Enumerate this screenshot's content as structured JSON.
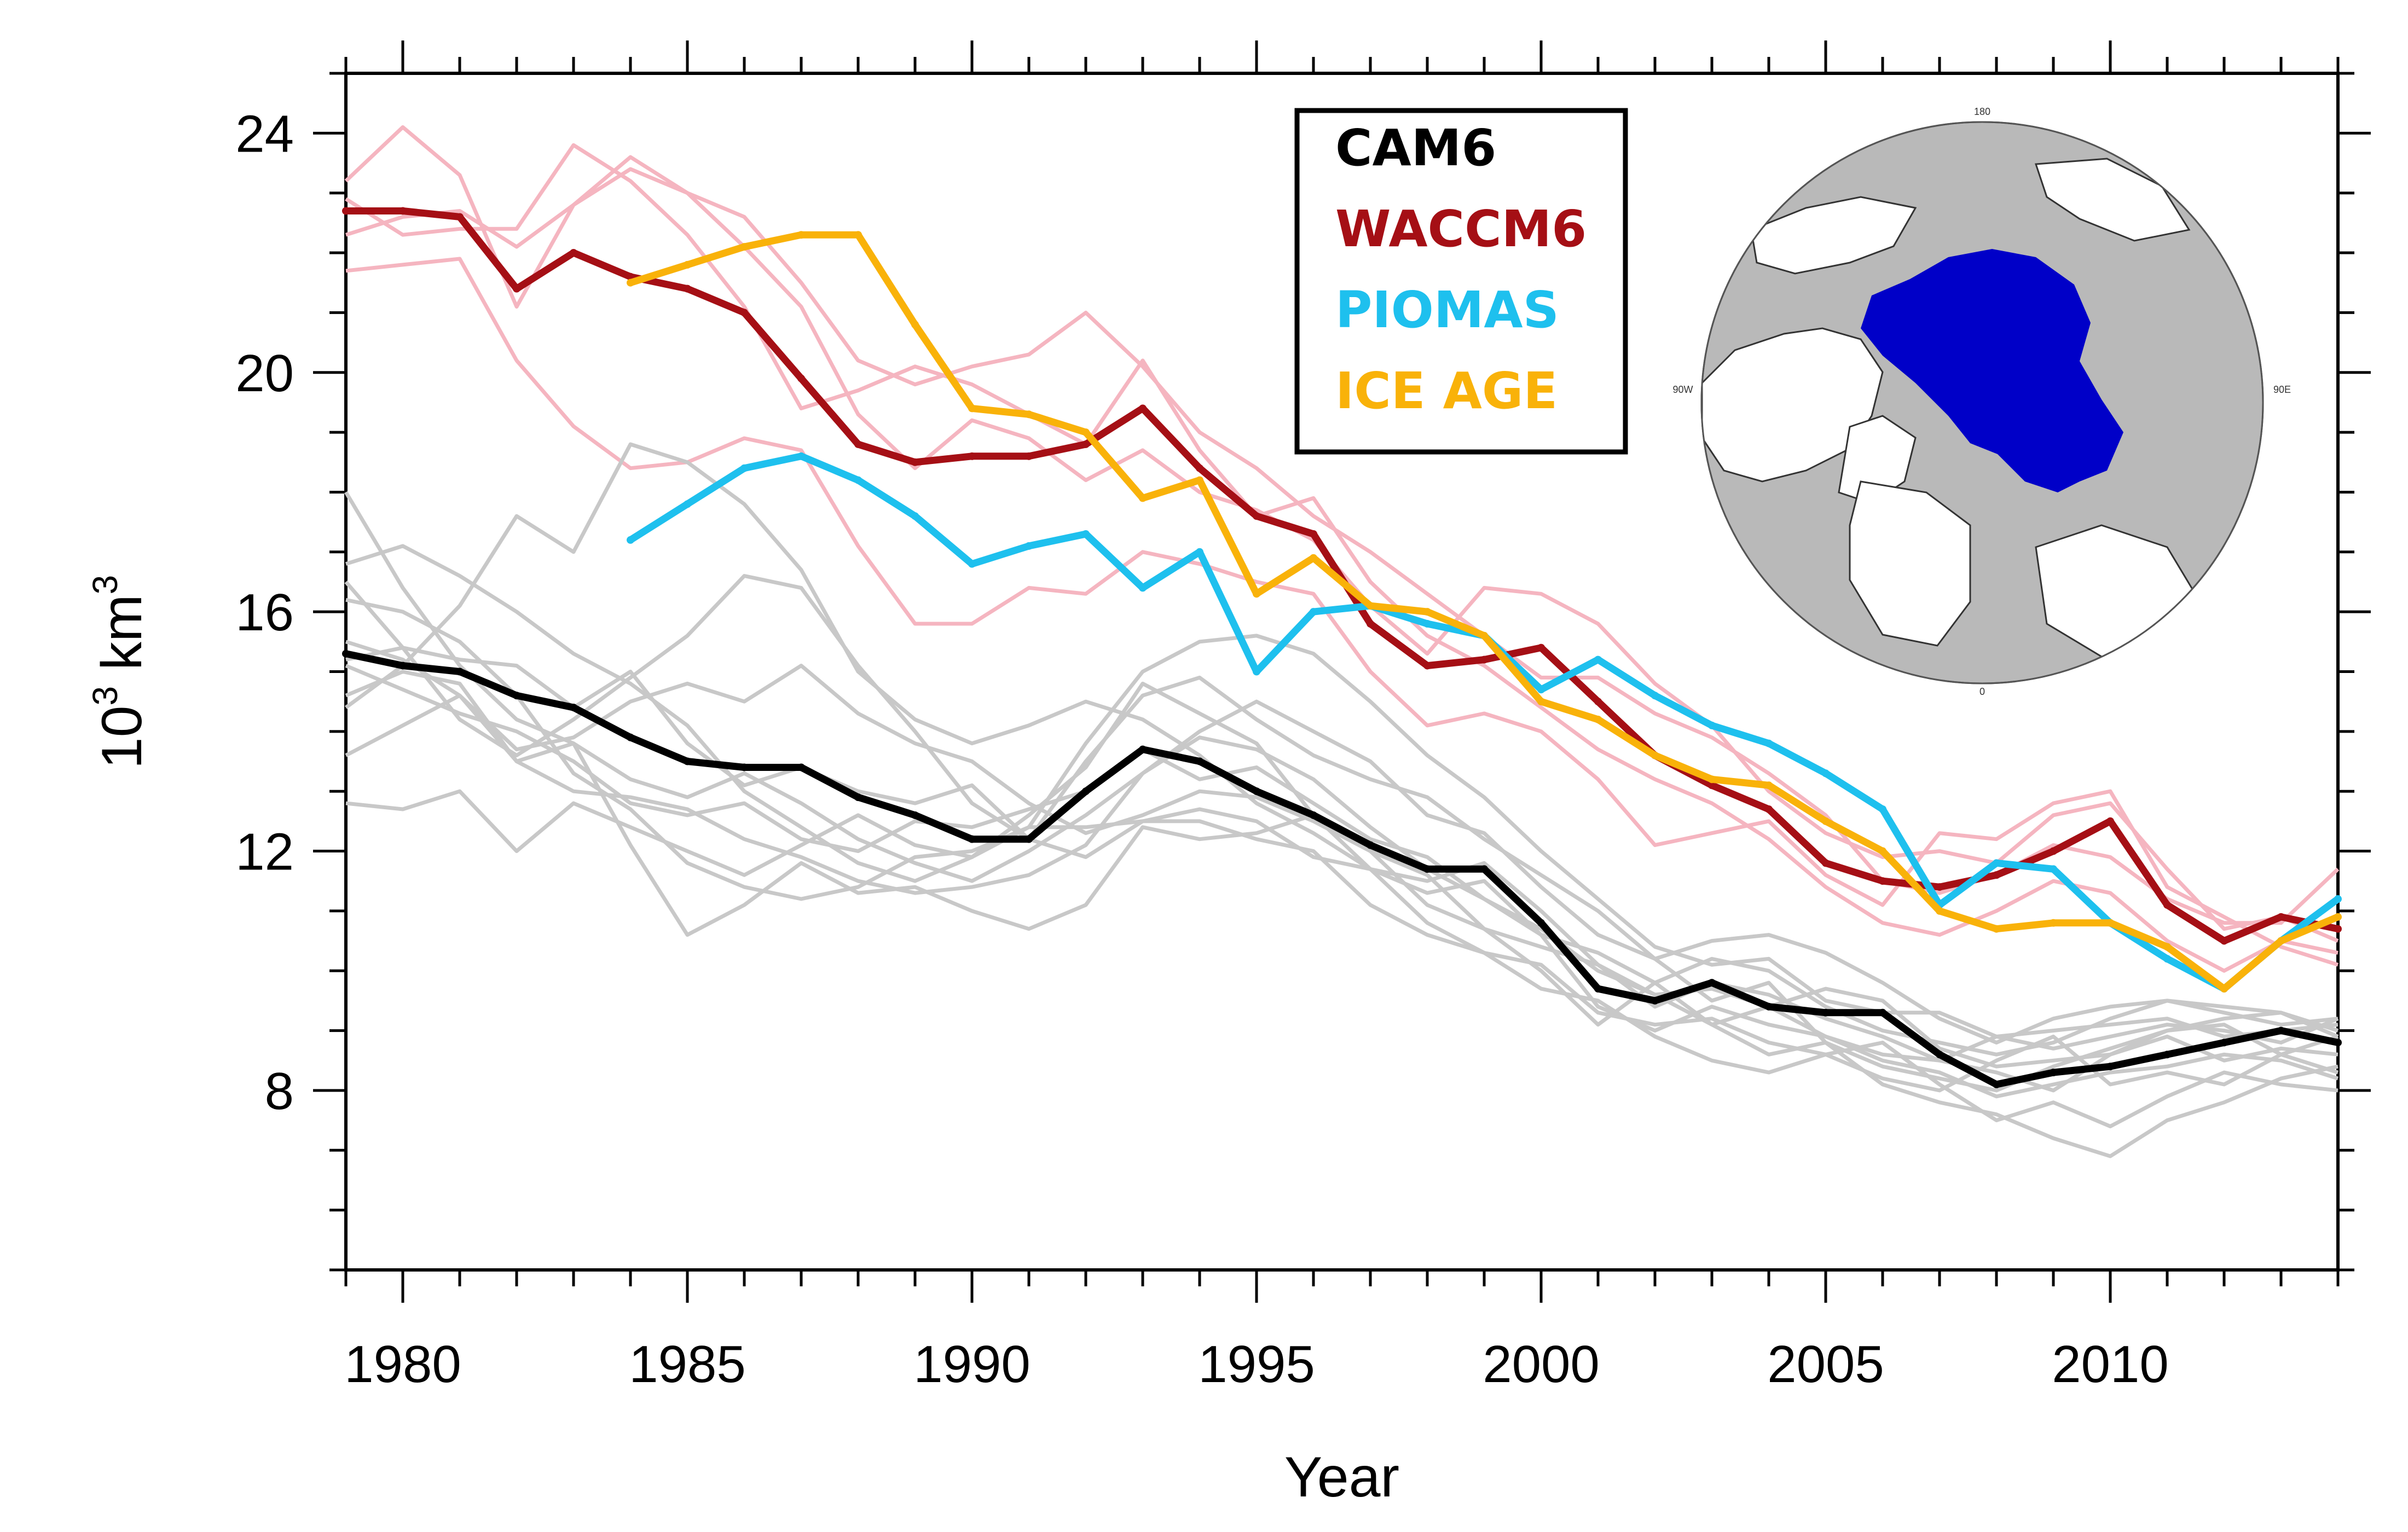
{
  "chart_data": {
    "type": "line",
    "xlabel": "Year",
    "ylabel_base": "10",
    "ylabel_exp": "3",
    "ylabel_unit": "km",
    "ylabel_unit_exp": "3",
    "xlim": [
      1979,
      2014
    ],
    "ylim": [
      5,
      25
    ],
    "xticks": [
      1980,
      1985,
      1990,
      1995,
      2000,
      2005,
      2010
    ],
    "yticks": [
      8,
      12,
      16,
      20,
      24
    ],
    "legend_position": "top-center",
    "colors": {
      "cam6": "#000000",
      "waccm6": "#a50f15",
      "piomas": "#1ec0ee",
      "iceage": "#f9b209",
      "cam6_member": "#c8c8c8",
      "waccm6_member": "#f5b5c0",
      "map_ocean": "#b9b9b9",
      "map_land": "#ffffff",
      "map_ice": "#0000c8"
    },
    "legend": [
      {
        "label": "CAM6",
        "color": "#000000"
      },
      {
        "label": "WACCM6",
        "color": "#a50f15"
      },
      {
        "label": "PIOMAS",
        "color": "#1ec0ee"
      },
      {
        "label": "ICE AGE",
        "color": "#f9b209"
      }
    ],
    "inset_map": {
      "description": "polar",
      "labels": {
        "top": "180",
        "left": "90W",
        "right": "90E",
        "bottom": "0"
      }
    },
    "series": [
      {
        "name": "CAM6",
        "role": "mean",
        "x": [
          1979,
          1980,
          1981,
          1982,
          1983,
          1984,
          1985,
          1986,
          1987,
          1988,
          1989,
          1990,
          1991,
          1992,
          1993,
          1994,
          1995,
          1996,
          1997,
          1998,
          1999,
          2000,
          2001,
          2002,
          2003,
          2004,
          2005,
          2006,
          2007,
          2008,
          2009,
          2010,
          2011,
          2012,
          2013,
          2014
        ],
        "values": [
          15.3,
          15.1,
          15.0,
          14.6,
          14.4,
          13.9,
          13.5,
          13.4,
          13.4,
          12.9,
          12.6,
          12.2,
          12.2,
          13.0,
          13.7,
          13.5,
          13.0,
          12.6,
          12.1,
          11.7,
          11.7,
          10.8,
          9.7,
          9.5,
          9.8,
          9.4,
          9.3,
          9.3,
          8.6,
          8.1,
          8.3,
          8.4,
          8.6,
          8.8,
          9.0,
          8.8
        ]
      },
      {
        "name": "WACCM6",
        "role": "mean",
        "x": [
          1979,
          1980,
          1981,
          1982,
          1983,
          1984,
          1985,
          1986,
          1987,
          1988,
          1989,
          1990,
          1991,
          1992,
          1993,
          1994,
          1995,
          1996,
          1997,
          1998,
          1999,
          2000,
          2001,
          2002,
          2003,
          2004,
          2005,
          2006,
          2007,
          2008,
          2009,
          2010,
          2011,
          2012,
          2013,
          2014
        ],
        "values": [
          22.7,
          22.7,
          22.6,
          21.4,
          22.0,
          21.6,
          21.4,
          21.0,
          19.9,
          18.8,
          18.5,
          18.6,
          18.6,
          18.8,
          19.4,
          18.4,
          17.6,
          17.3,
          15.8,
          15.1,
          15.2,
          15.4,
          14.5,
          13.6,
          13.1,
          12.7,
          11.8,
          11.5,
          11.4,
          11.6,
          12.0,
          12.5,
          11.1,
          10.5,
          10.9,
          10.7
        ]
      },
      {
        "name": "PIOMAS",
        "role": "obs",
        "x": [
          1984,
          1985,
          1986,
          1987,
          1988,
          1989,
          1990,
          1991,
          1992,
          1993,
          1994,
          1995,
          1996,
          1997,
          1998,
          1999,
          2000,
          2001,
          2002,
          2003,
          2004,
          2005,
          2006,
          2007,
          2008,
          2009,
          2010,
          2011,
          2012,
          2013,
          2014
        ],
        "values": [
          17.2,
          17.8,
          18.4,
          18.6,
          18.2,
          17.6,
          16.8,
          17.1,
          17.3,
          16.4,
          17.0,
          15.0,
          16.0,
          16.1,
          15.8,
          15.6,
          14.7,
          15.2,
          14.6,
          14.1,
          13.8,
          13.3,
          12.7,
          11.1,
          11.8,
          11.7,
          10.8,
          10.2,
          9.7,
          10.5,
          11.2
        ]
      },
      {
        "name": "ICE AGE",
        "role": "obs",
        "x": [
          1984,
          1985,
          1986,
          1987,
          1988,
          1989,
          1990,
          1991,
          1992,
          1993,
          1994,
          1995,
          1996,
          1997,
          1998,
          1999,
          2000,
          2001,
          2002,
          2003,
          2004,
          2005,
          2006,
          2007,
          2008,
          2009,
          2010,
          2011,
          2012,
          2013,
          2014
        ],
        "values": [
          21.5,
          21.8,
          22.1,
          22.3,
          22.3,
          20.8,
          19.4,
          19.3,
          19.0,
          17.9,
          18.2,
          16.3,
          16.9,
          16.1,
          16.0,
          15.6,
          14.5,
          14.2,
          13.6,
          13.2,
          13.1,
          12.5,
          12.0,
          11.0,
          10.7,
          10.8,
          10.8,
          10.4,
          9.7,
          10.5,
          10.9
        ]
      },
      {
        "role": "member",
        "group": "waccm6",
        "x0": 1979,
        "values": [
          23.2,
          24.1,
          23.3,
          21.1,
          22.8,
          23.4,
          23.0,
          22.6,
          21.5,
          20.2,
          19.8,
          20.1,
          20.3,
          21.0,
          20.1,
          19.0,
          18.4,
          17.6,
          17.0,
          16.3,
          15.6,
          14.9,
          14.9,
          14.3,
          13.9,
          13.3,
          12.6,
          11.5,
          11.3,
          11.6,
          12.1,
          11.9,
          11.2,
          10.8,
          10.8,
          11.7
        ]
      },
      {
        "role": "member",
        "group": "waccm6",
        "x0": 1979,
        "values": [
          21.7,
          21.8,
          21.9,
          20.2,
          19.1,
          18.4,
          18.5,
          18.9,
          18.7,
          17.1,
          15.8,
          15.8,
          16.4,
          16.3,
          17.0,
          16.8,
          16.5,
          16.3,
          15.0,
          14.1,
          14.3,
          14.0,
          13.2,
          12.1,
          12.3,
          12.5,
          11.6,
          11.1,
          12.3,
          12.2,
          12.8,
          13.0,
          11.4,
          10.9,
          10.4,
          10.1
        ]
      },
      {
        "role": "member",
        "group": "waccm6",
        "x0": 1979,
        "values": [
          22.9,
          22.3,
          22.4,
          22.4,
          23.8,
          23.2,
          22.3,
          21.1,
          19.4,
          19.7,
          20.1,
          19.8,
          19.3,
          18.8,
          20.2,
          18.7,
          17.6,
          17.9,
          16.5,
          15.6,
          15.1,
          14.4,
          13.7,
          13.2,
          12.8,
          12.2,
          11.4,
          10.8,
          10.6,
          11.0,
          11.5,
          11.3,
          10.5,
          10.0,
          10.5,
          10.3
        ]
      },
      {
        "role": "member",
        "group": "waccm6",
        "x0": 1979,
        "values": [
          22.3,
          22.6,
          22.7,
          22.1,
          22.8,
          23.6,
          23.0,
          22.1,
          21.1,
          19.3,
          18.4,
          19.2,
          18.9,
          18.2,
          18.7,
          18.0,
          17.7,
          17.2,
          16.1,
          15.3,
          16.4,
          16.3,
          15.8,
          14.8,
          14.1,
          13.0,
          12.3,
          11.9,
          12.0,
          11.8,
          12.6,
          12.8,
          11.7,
          10.7,
          10.9,
          10.5
        ]
      },
      {
        "role": "member",
        "group": "cam6",
        "x0": 1979,
        "values": [
          18.0,
          16.4,
          15.1,
          14.2,
          13.8,
          12.1,
          10.6,
          11.1,
          11.8,
          11.3,
          11.4,
          11.0,
          10.7,
          11.1,
          12.4,
          12.2,
          12.3,
          12.6,
          11.7,
          10.8,
          10.3,
          9.7,
          9.5,
          8.9,
          8.5,
          8.3,
          8.6,
          8.8,
          8.1,
          7.5,
          7.8,
          7.4,
          7.9,
          8.3,
          8.1,
          8.0
        ]
      },
      {
        "role": "member",
        "group": "cam6",
        "x0": 1979,
        "values": [
          16.8,
          17.1,
          16.6,
          16.0,
          15.3,
          14.8,
          14.1,
          13.0,
          12.4,
          11.8,
          11.5,
          11.9,
          12.6,
          13.4,
          14.8,
          14.3,
          13.8,
          12.6,
          12.0,
          11.1,
          10.7,
          10.0,
          9.1,
          9.8,
          9.1,
          8.6,
          8.8,
          8.1,
          7.8,
          7.6,
          7.2,
          6.9,
          7.5,
          7.8,
          8.2,
          8.4
        ]
      },
      {
        "role": "member",
        "group": "cam6",
        "x0": 1979,
        "values": [
          16.2,
          16.0,
          15.5,
          14.6,
          13.3,
          12.7,
          11.8,
          11.4,
          11.2,
          11.4,
          11.9,
          12.0,
          12.4,
          13.8,
          15.0,
          15.5,
          15.6,
          15.3,
          14.5,
          13.6,
          12.9,
          12.0,
          11.2,
          10.4,
          10.1,
          10.2,
          9.5,
          9.3,
          9.3,
          8.9,
          8.7,
          8.9,
          9.1,
          9.0,
          8.8,
          9.2
        ]
      },
      {
        "role": "member",
        "group": "cam6",
        "x0": 1979,
        "values": [
          15.5,
          15.2,
          14.6,
          13.5,
          13.8,
          13.2,
          12.9,
          13.3,
          12.8,
          12.2,
          11.8,
          11.5,
          12.0,
          12.6,
          13.3,
          14.0,
          14.5,
          14.0,
          13.5,
          12.6,
          12.3,
          11.4,
          10.6,
          10.2,
          9.5,
          9.8,
          8.8,
          8.4,
          8.2,
          8.0,
          8.4,
          8.7,
          9.0,
          9.1,
          8.6,
          8.9
        ]
      },
      {
        "role": "member",
        "group": "cam6",
        "x0": 1979,
        "values": [
          12.8,
          12.7,
          13.0,
          12.0,
          12.8,
          12.4,
          12.0,
          11.6,
          12.1,
          12.6,
          12.1,
          11.9,
          12.4,
          12.4,
          12.5,
          12.5,
          12.2,
          12.0,
          11.1,
          10.6,
          10.3,
          10.1,
          9.3,
          9.1,
          9.2,
          8.8,
          8.6,
          8.2,
          8.0,
          8.5,
          8.9,
          8.1,
          8.3,
          8.1,
          8.6,
          8.3
        ]
      },
      {
        "role": "member",
        "group": "cam6",
        "x0": 1979,
        "values": [
          15.2,
          15.4,
          15.2,
          15.1,
          14.4,
          15.0,
          13.8,
          13.1,
          13.4,
          13.0,
          12.8,
          13.1,
          12.2,
          11.9,
          12.5,
          12.7,
          12.5,
          11.9,
          11.7,
          11.3,
          11.5,
          10.6,
          10.3,
          9.8,
          10.2,
          10.0,
          9.4,
          9.0,
          8.8,
          8.6,
          8.8,
          9.2,
          9.5,
          9.4,
          9.3,
          8.9
        ]
      },
      {
        "role": "member",
        "group": "cam6",
        "x0": 1979,
        "values": [
          13.6,
          14.1,
          14.6,
          13.7,
          13.9,
          14.5,
          14.8,
          14.5,
          15.1,
          14.3,
          13.8,
          13.5,
          12.8,
          12.3,
          12.6,
          13.0,
          12.9,
          12.5,
          12.0,
          11.6,
          10.7,
          10.4,
          10.1,
          9.6,
          9.1,
          9.4,
          8.9,
          8.6,
          8.5,
          8.9,
          9.0,
          9.1,
          9.2,
          8.9,
          9.0,
          9.1
        ]
      },
      {
        "role": "member",
        "group": "cam6",
        "x0": 1979,
        "values": [
          14.6,
          15.0,
          14.8,
          13.5,
          13.0,
          12.9,
          12.7,
          12.2,
          11.9,
          11.5,
          11.3,
          11.4,
          11.6,
          12.1,
          13.3,
          13.9,
          13.7,
          13.2,
          12.4,
          11.7,
          11.2,
          10.7,
          10.0,
          9.6,
          9.7,
          9.4,
          9.7,
          9.5,
          8.7,
          8.4,
          8.5,
          8.6,
          9.0,
          9.2,
          9.3,
          9.0
        ]
      },
      {
        "role": "member",
        "group": "cam6",
        "x0": 1979,
        "values": [
          15.1,
          14.7,
          14.3,
          14.0,
          13.5,
          12.8,
          12.6,
          12.8,
          12.2,
          12.0,
          12.5,
          12.4,
          12.7,
          13.0,
          13.7,
          13.2,
          13.4,
          12.8,
          12.2,
          11.9,
          11.2,
          10.6,
          9.4,
          9.0,
          9.4,
          9.1,
          8.9,
          8.5,
          8.3,
          7.9,
          8.1,
          8.3,
          8.4,
          8.6,
          8.5,
          8.2
        ]
      },
      {
        "role": "member",
        "group": "cam6",
        "x0": 1979,
        "values": [
          14.4,
          15.1,
          16.1,
          17.6,
          17.0,
          18.8,
          18.5,
          17.8,
          16.7,
          15.0,
          14.2,
          13.8,
          14.1,
          14.5,
          14.2,
          13.6,
          12.8,
          12.3,
          11.7,
          11.5,
          11.8,
          11.0,
          10.1,
          9.4,
          9.8,
          9.6,
          9.2,
          8.9,
          8.5,
          8.3,
          8.0,
          8.6,
          8.9,
          8.5,
          8.7,
          8.6
        ]
      },
      {
        "role": "member",
        "group": "cam6",
        "x0": 1979,
        "values": [
          16.5,
          15.4,
          14.2,
          13.6,
          14.2,
          14.9,
          15.6,
          16.6,
          16.4,
          15.1,
          14.0,
          12.8,
          12.2,
          13.5,
          14.6,
          14.9,
          14.2,
          13.6,
          13.2,
          12.9,
          12.2,
          11.6,
          11.0,
          10.2,
          10.5,
          10.6,
          10.3,
          9.8,
          9.2,
          8.8,
          9.2,
          9.4,
          9.5,
          9.3,
          9.1,
          9.2
        ]
      }
    ]
  }
}
